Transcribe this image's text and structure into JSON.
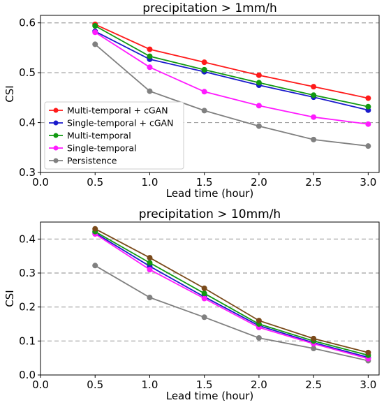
{
  "chart_data": [
    {
      "type": "line",
      "title": "precipitation > 1mm/h",
      "xlabel": "Lead time (hour)",
      "ylabel": "CSI",
      "x": [
        0.5,
        1.0,
        1.5,
        2.0,
        2.5,
        3.0
      ],
      "xlim": [
        0.0,
        3.1
      ],
      "ylim": [
        0.3,
        0.615
      ],
      "xticks": [
        "0.0",
        "0.5",
        "1.0",
        "1.5",
        "2.0",
        "2.5",
        "3.0"
      ],
      "yticks": [
        "0.3",
        "0.4",
        "0.5",
        "0.6"
      ],
      "grid": "horizontal dashed at 0.4, 0.5, 0.6",
      "legend_position": "center-left",
      "series": [
        {
          "name": "Multi-temporal + cGAN",
          "color": "#ff1a1a",
          "values": [
            0.597,
            0.547,
            0.521,
            0.495,
            0.472,
            0.449
          ]
        },
        {
          "name": "Single-temporal + cGAN",
          "color": "#1a1acc",
          "values": [
            0.583,
            0.527,
            0.502,
            0.475,
            0.451,
            0.425
          ]
        },
        {
          "name": "Multi-temporal",
          "color": "#119911",
          "values": [
            0.594,
            0.533,
            0.506,
            0.48,
            0.455,
            0.432
          ]
        },
        {
          "name": "Single-temporal",
          "color": "#ff1aff",
          "values": [
            0.581,
            0.511,
            0.462,
            0.434,
            0.411,
            0.397
          ]
        },
        {
          "name": "Persistence",
          "color": "#808080",
          "values": [
            0.557,
            0.463,
            0.424,
            0.393,
            0.366,
            0.353
          ]
        }
      ]
    },
    {
      "type": "line",
      "title": "precipitation > 10mm/h",
      "xlabel": "Lead time (hour)",
      "ylabel": "CSI",
      "x": [
        0.5,
        1.0,
        1.5,
        2.0,
        2.5,
        3.0
      ],
      "xlim": [
        0.0,
        3.1
      ],
      "ylim": [
        0.0,
        0.45
      ],
      "xticks": [
        "0.0",
        "0.5",
        "1.0",
        "1.5",
        "2.0",
        "2.5",
        "3.0"
      ],
      "yticks": [
        "0.0",
        "0.1",
        "0.2",
        "0.3",
        "0.4"
      ],
      "grid": "horizontal dashed at 0.1, 0.2, 0.3, 0.4",
      "series": [
        {
          "color": "#808080",
          "values": [
            0.322,
            0.228,
            0.17,
            0.109,
            0.078,
            0.042
          ]
        },
        {
          "color": "#1a1acc",
          "values": [
            0.418,
            0.32,
            0.23,
            0.145,
            0.095,
            0.052
          ]
        },
        {
          "color": "#ff1aff",
          "values": [
            0.415,
            0.31,
            0.225,
            0.14,
            0.092,
            0.048
          ]
        },
        {
          "color": "#119911",
          "values": [
            0.422,
            0.33,
            0.24,
            0.15,
            0.1,
            0.058
          ]
        },
        {
          "color": "#7a4a1a",
          "values": [
            0.43,
            0.345,
            0.255,
            0.16,
            0.107,
            0.066
          ]
        }
      ]
    }
  ]
}
